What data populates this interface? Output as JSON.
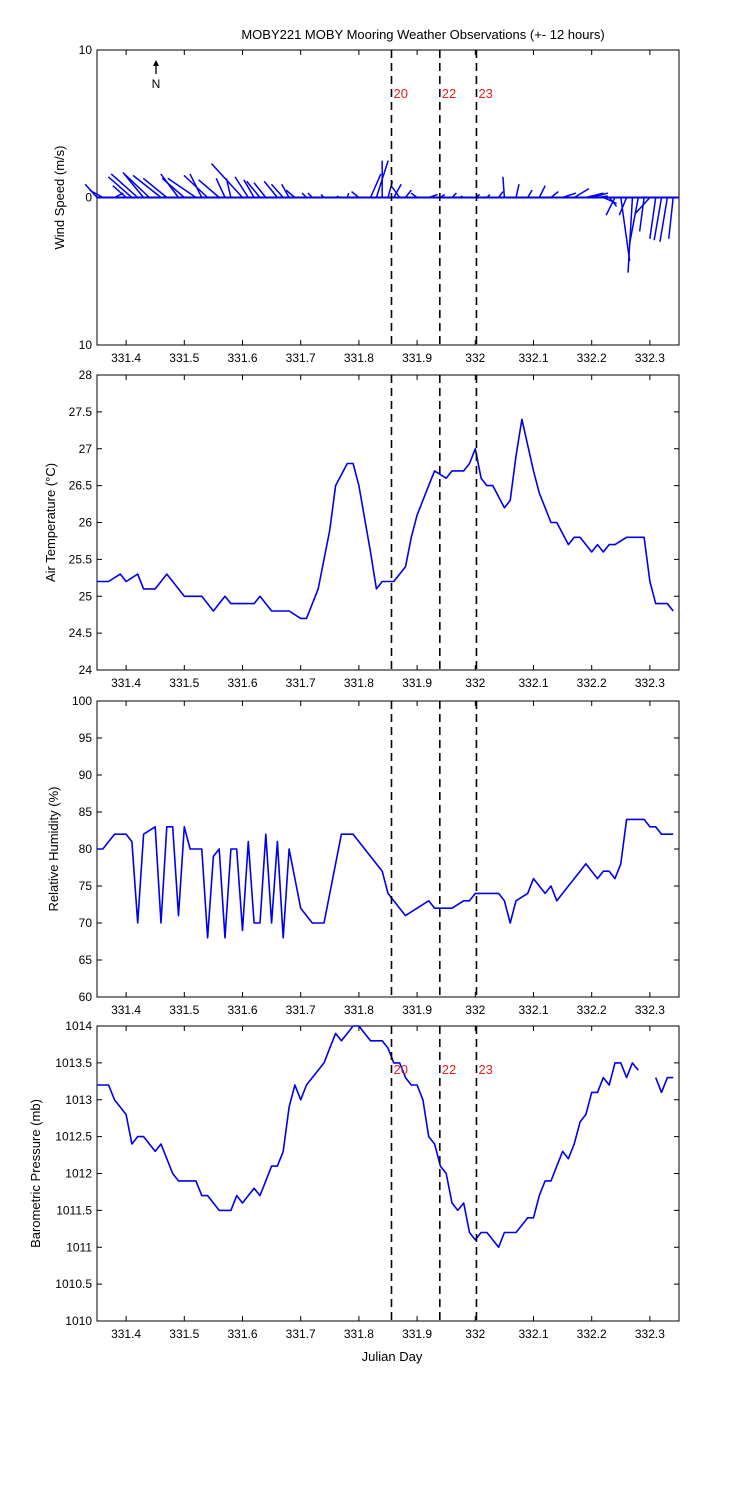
{
  "title": "MOBY221 MOBY Mooring Weather Observations (+- 12 hours)",
  "xlabel": "Julian Day",
  "north_label": "N",
  "colors": {
    "series": "#0000ee",
    "marker_text": "#dd2222",
    "axis": "#000000"
  },
  "x_ticks": [
    331.4,
    331.5,
    331.6,
    331.7,
    331.8,
    331.9,
    332,
    332.1,
    332.2,
    332.3
  ],
  "x_tick_labels": [
    "331.4",
    "331.5",
    "331.6",
    "331.7",
    "331.8",
    "331.9",
    "332",
    "332.1",
    "332.2",
    "332.3"
  ],
  "xlim": [
    331.35,
    332.35
  ],
  "markers": [
    {
      "label": "20",
      "x": 331.856
    },
    {
      "label": "22",
      "x": 331.939
    },
    {
      "label": "23",
      "x": 332.002
    }
  ],
  "chart_data": [
    {
      "type": "line",
      "subtype": "wind-stick",
      "ylabel": "Wind Speed (m/s)",
      "ylim": [
        -10,
        10
      ],
      "y_tick_labels": [
        "10",
        "0",
        "10"
      ],
      "y_ticks": [
        10,
        0,
        -10
      ],
      "marker_labels_shown": true,
      "series": [
        {
          "x": [
            331.35,
            331.36,
            331.38,
            331.4,
            331.41,
            331.42,
            331.43,
            331.44,
            331.46,
            331.47,
            331.49,
            331.5,
            331.52,
            331.53,
            331.54,
            331.56,
            331.57,
            331.58,
            331.6,
            331.61,
            331.62,
            331.63,
            331.64,
            331.66,
            331.67,
            331.68,
            331.69,
            331.71,
            331.72,
            331.74,
            331.76,
            331.78,
            331.8,
            331.82,
            331.83,
            331.84,
            331.85,
            331.86,
            331.87,
            331.88,
            331.9,
            331.92,
            331.94,
            331.96,
            331.98,
            332.0,
            332.02,
            332.04,
            332.05,
            332.07,
            332.09,
            332.11,
            332.13,
            332.15,
            332.17,
            332.19,
            332.2,
            332.21,
            332.22,
            332.23,
            332.24,
            332.25,
            332.26,
            332.27,
            332.28,
            332.29,
            332.3,
            332.31,
            332.32,
            332.33,
            332.34
          ],
          "u": [
            -0.8,
            -0.9,
            0.6,
            -0.9,
            -1.6,
            -1.8,
            -1.4,
            -1.7,
            -1.9,
            -1.6,
            -1.2,
            -1.5,
            -1.9,
            -0.8,
            -1.6,
            -1.4,
            -0.6,
            -0.3,
            -2.1,
            -0.9,
            -0.7,
            -0.9,
            -0.8,
            -0.9,
            -0.8,
            -0.5,
            -0.6,
            -0.3,
            -0.3,
            -0.2,
            0.2,
            0.1,
            -0.5,
            0.7,
            0.8,
            0.0,
            0.3,
            0.5,
            -0.5,
            0.4,
            -0.4,
            0.6,
            0.3,
            0.3,
            -0.2,
            0.3,
            0.2,
            0.3,
            -0.1,
            0.2,
            0.3,
            0.4,
            0.5,
            0.9,
            1.0,
            1.2,
            1.1,
            0.7,
            0.9,
            0.5,
            -0.6,
            0.6,
            -0.5,
            -0.3,
            -0.6,
            -0.3,
            -1.0,
            -0.4,
            -0.5,
            -0.5,
            -0.3
          ],
          "v": [
            0.9,
            0.5,
            0.3,
            0.8,
            1.4,
            1.6,
            1.7,
            1.6,
            1.5,
            1.3,
            1.6,
            1.3,
            1.3,
            1.6,
            1.5,
            1.2,
            1.3,
            1.3,
            2.3,
            1.4,
            1.2,
            1.1,
            1.0,
            1.1,
            0.9,
            0.9,
            0.5,
            0.3,
            0.3,
            0.2,
            0.1,
            0.3,
            0.4,
            1.6,
            2.5,
            2.5,
            1.1,
            0.9,
            0.7,
            0.5,
            0.3,
            0.2,
            0.2,
            0.3,
            0.1,
            0.2,
            0.2,
            0.4,
            1.4,
            0.9,
            0.5,
            0.8,
            0.4,
            0.3,
            0.6,
            0.3,
            0.3,
            0.1,
            -0.4,
            -0.6,
            -1.2,
            -4.3,
            -1.2,
            -5.1,
            -3.2,
            -2.3,
            -1.1,
            -2.8,
            -2.9,
            -3.0,
            -2.8
          ]
        }
      ]
    },
    {
      "type": "line",
      "ylabel": "Air Temperature (°C)",
      "ylim": [
        24,
        28
      ],
      "y_ticks": [
        24,
        24.5,
        25,
        25.5,
        26,
        26.5,
        27,
        27.5,
        28
      ],
      "y_tick_labels": [
        "24",
        "24.5",
        "25",
        "25.5",
        "26",
        "26.5",
        "27",
        "27.5",
        "28"
      ],
      "series": [
        {
          "x": [
            331.35,
            331.37,
            331.39,
            331.4,
            331.42,
            331.43,
            331.45,
            331.47,
            331.48,
            331.5,
            331.52,
            331.53,
            331.55,
            331.57,
            331.58,
            331.6,
            331.62,
            331.63,
            331.65,
            331.67,
            331.68,
            331.7,
            331.71,
            331.73,
            331.75,
            331.76,
            331.78,
            331.79,
            331.8,
            331.82,
            331.83,
            331.84,
            331.86,
            331.88,
            331.89,
            331.9,
            331.92,
            331.93,
            331.95,
            331.96,
            331.98,
            331.99,
            332.0,
            332.01,
            332.02,
            332.03,
            332.05,
            332.06,
            332.07,
            332.08,
            332.1,
            332.11,
            332.13,
            332.14,
            332.16,
            332.17,
            332.18,
            332.2,
            332.21,
            332.22,
            332.23,
            332.24,
            332.26,
            332.27,
            332.28,
            332.29,
            332.3,
            332.31,
            332.32,
            332.33,
            332.34
          ],
          "y": [
            25.2,
            25.2,
            25.3,
            25.2,
            25.3,
            25.1,
            25.1,
            25.3,
            25.2,
            25.0,
            25.0,
            25.0,
            24.8,
            25.0,
            24.9,
            24.9,
            24.9,
            25.0,
            24.8,
            24.8,
            24.8,
            24.7,
            24.7,
            25.1,
            25.9,
            26.5,
            26.8,
            26.8,
            26.5,
            25.6,
            25.1,
            25.2,
            25.2,
            25.4,
            25.8,
            26.1,
            26.5,
            26.7,
            26.6,
            26.7,
            26.7,
            26.8,
            27.0,
            26.6,
            26.5,
            26.5,
            26.2,
            26.3,
            26.9,
            27.4,
            26.7,
            26.4,
            26.0,
            26.0,
            25.7,
            25.8,
            25.8,
            25.6,
            25.7,
            25.6,
            25.7,
            25.7,
            25.8,
            25.8,
            25.8,
            25.8,
            25.2,
            24.9,
            24.9,
            24.9,
            24.8
          ]
        }
      ]
    },
    {
      "type": "line",
      "ylabel": "Relative Humidity (%)",
      "ylim": [
        60,
        100
      ],
      "y_ticks": [
        60,
        65,
        70,
        75,
        80,
        85,
        90,
        95,
        100
      ],
      "y_tick_labels": [
        "60",
        "65",
        "70",
        "75",
        "80",
        "85",
        "90",
        "95",
        "100"
      ],
      "series": [
        {
          "x": [
            331.35,
            331.36,
            331.38,
            331.4,
            331.41,
            331.42,
            331.43,
            331.45,
            331.46,
            331.47,
            331.48,
            331.49,
            331.5,
            331.51,
            331.52,
            331.53,
            331.54,
            331.55,
            331.56,
            331.57,
            331.58,
            331.59,
            331.6,
            331.61,
            331.62,
            331.63,
            331.64,
            331.65,
            331.66,
            331.67,
            331.68,
            331.69,
            331.7,
            331.72,
            331.74,
            331.75,
            331.77,
            331.79,
            331.81,
            331.82,
            331.84,
            331.85,
            331.87,
            331.88,
            331.9,
            331.92,
            331.93,
            331.95,
            331.96,
            331.98,
            331.99,
            332.0,
            332.01,
            332.02,
            332.04,
            332.05,
            332.06,
            332.07,
            332.09,
            332.1,
            332.12,
            332.13,
            332.14,
            332.16,
            332.18,
            332.19,
            332.2,
            332.21,
            332.22,
            332.23,
            332.24,
            332.25,
            332.26,
            332.28,
            332.29,
            332.3,
            332.31,
            332.32,
            332.33,
            332.34
          ],
          "y": [
            80,
            80,
            82,
            82,
            81,
            70,
            82,
            83,
            70,
            83,
            83,
            71,
            83,
            80,
            80,
            80,
            68,
            79,
            80,
            68,
            80,
            80,
            69,
            81,
            70,
            70,
            82,
            70,
            81,
            68,
            80,
            76,
            72,
            70,
            70,
            74,
            82,
            82,
            80,
            79,
            77,
            74,
            72,
            71,
            72,
            73,
            72,
            72,
            72,
            73,
            73,
            74,
            74,
            74,
            74,
            73,
            70,
            73,
            74,
            76,
            74,
            75,
            73,
            75,
            77,
            78,
            77,
            76,
            77,
            77,
            76,
            78,
            84,
            84,
            84,
            83,
            83,
            82,
            82,
            82
          ]
        }
      ]
    },
    {
      "type": "line",
      "ylabel": "Barometric Pressure (mb)",
      "ylim": [
        1010,
        1014
      ],
      "y_ticks": [
        1010,
        1010.5,
        1011,
        1011.5,
        1012,
        1012.5,
        1013,
        1013.5,
        1014
      ],
      "y_tick_labels": [
        "1010",
        "1010.5",
        "1011",
        "1011.5",
        "1012",
        "1012.5",
        "1013",
        "1013.5",
        "1014"
      ],
      "marker_labels_shown": true,
      "series": [
        {
          "x": [
            331.35,
            331.36,
            331.37,
            331.38,
            331.39,
            331.4,
            331.41,
            331.42,
            331.43,
            331.44,
            331.45,
            331.46,
            331.47,
            331.48,
            331.49,
            331.5,
            331.51,
            331.52,
            331.53,
            331.54,
            331.55,
            331.56,
            331.57,
            331.58,
            331.59,
            331.6,
            331.61,
            331.62,
            331.63,
            331.64,
            331.65,
            331.66,
            331.67,
            331.68,
            331.69,
            331.7,
            331.71,
            331.72,
            331.73,
            331.74,
            331.75,
            331.76,
            331.77,
            331.78,
            331.79,
            331.8,
            331.81,
            331.82,
            331.83,
            331.84,
            331.85,
            331.86,
            331.87,
            331.88,
            331.89,
            331.9,
            331.91,
            331.92,
            331.93,
            331.94,
            331.95,
            331.96,
            331.97,
            331.98,
            331.99,
            332.0,
            332.01,
            332.02,
            332.03,
            332.04,
            332.05,
            332.06,
            332.07,
            332.08,
            332.09,
            332.1,
            332.11,
            332.12,
            332.13,
            332.14,
            332.15,
            332.16,
            332.17,
            332.18,
            332.19,
            332.2,
            332.21,
            332.22,
            332.23,
            332.24,
            332.25,
            332.26,
            332.27,
            332.28,
            332.29,
            332.3,
            332.31,
            332.32,
            332.33,
            332.34
          ],
          "y": [
            1013.2,
            1013.2,
            1013.2,
            1013.0,
            1012.9,
            1012.8,
            1012.4,
            1012.5,
            1012.5,
            1012.4,
            1012.3,
            1012.4,
            1012.2,
            1012.0,
            1011.9,
            1011.9,
            1011.9,
            1011.9,
            1011.7,
            1011.7,
            1011.6,
            1011.5,
            1011.5,
            1011.5,
            1011.7,
            1011.6,
            1011.7,
            1011.8,
            1011.7,
            1011.9,
            1012.1,
            1012.1,
            1012.3,
            1012.9,
            1013.2,
            1013.0,
            1013.2,
            1013.3,
            1013.4,
            1013.5,
            1013.7,
            1013.9,
            1013.8,
            1013.9,
            1014.0,
            1014.0,
            1013.9,
            1013.8,
            1013.8,
            1013.8,
            1013.7,
            1013.5,
            1013.5,
            1013.3,
            1013.2,
            1013.2,
            1013.0,
            1012.5,
            1012.4,
            1012.1,
            1012.0,
            1011.6,
            1011.5,
            1011.6,
            1011.2,
            1011.1,
            1011.2,
            1011.2,
            1011.1,
            1011.0,
            1011.2,
            1011.2,
            1011.2,
            1011.3,
            1011.4,
            1011.4,
            1011.7,
            1011.9,
            1011.9,
            1012.1,
            1012.3,
            1012.2,
            1012.4,
            1012.7,
            1012.8,
            1013.1,
            1013.1,
            1013.3,
            1013.2,
            1013.5,
            1013.5,
            1013.3,
            1013.5,
            1013.4,
            null,
            null,
            1013.3,
            1013.1,
            1013.3,
            1013.3
          ]
        }
      ]
    }
  ]
}
